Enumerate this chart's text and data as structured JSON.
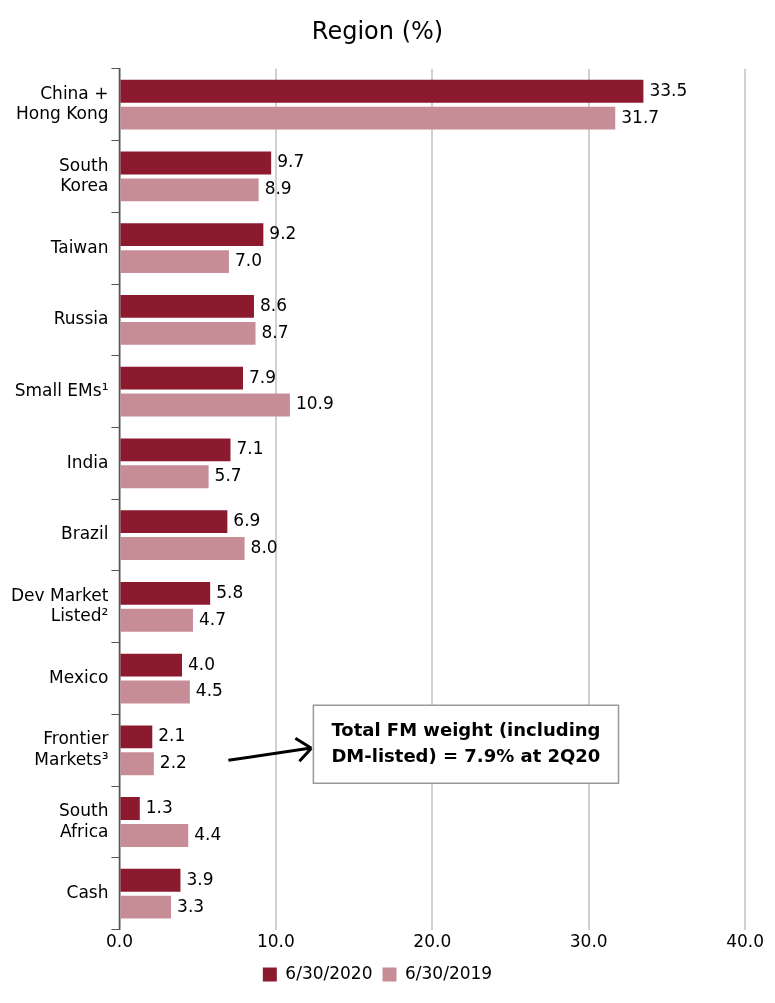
{
  "chart_data": {
    "type": "bar",
    "orientation": "horizontal",
    "title": "Region (%)",
    "categories": [
      "China + Hong Kong",
      "South Korea",
      "Taiwan",
      "Russia",
      "Small EMs¹",
      "India",
      "Brazil",
      "Dev Market Listed²",
      "Mexico",
      "Frontier Markets³",
      "South Africa",
      "Cash"
    ],
    "series": [
      {
        "name": "6/30/2020",
        "color": "#8c1a2e",
        "values": [
          33.5,
          9.7,
          9.2,
          8.6,
          7.9,
          7.1,
          6.9,
          5.8,
          4.0,
          2.1,
          1.3,
          3.9
        ],
        "value_labels": [
          "33.5",
          "9.7",
          "9.2",
          "8.6",
          "7.9",
          "7.1",
          "6.9",
          "5.8",
          "4.0",
          "2.1",
          "1.3",
          "3.9"
        ]
      },
      {
        "name": "6/30/2019",
        "color": "#c68d97",
        "values": [
          31.7,
          8.9,
          7.0,
          8.7,
          10.9,
          5.7,
          8.0,
          4.7,
          4.5,
          2.2,
          4.4,
          3.3
        ],
        "value_labels": [
          "31.7",
          "8.9",
          "7.0",
          "8.7",
          "10.9",
          "5.7",
          "8.0",
          "4.7",
          "4.5",
          "2.2",
          "4.4",
          "3.3"
        ]
      }
    ],
    "xlim": [
      0,
      40
    ],
    "xticks": [
      {
        "value": 0,
        "label": "0.0"
      },
      {
        "value": 10,
        "label": "10.0"
      },
      {
        "value": 20,
        "label": "20.0"
      },
      {
        "value": 30,
        "label": "30.0"
      },
      {
        "value": 40,
        "label": "40.0"
      }
    ],
    "grid": "x",
    "legend": "bottom",
    "annotations": [
      "Total FM weight (including DM-listed) = 7.9% at 2Q20"
    ]
  }
}
